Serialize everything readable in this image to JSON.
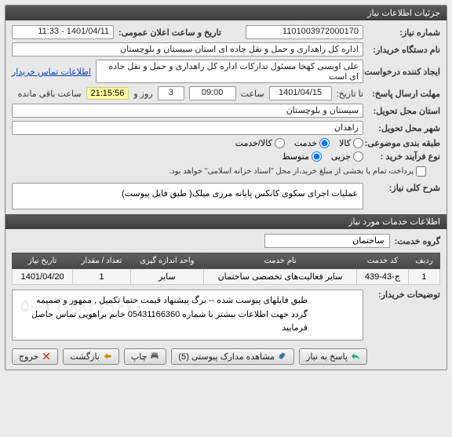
{
  "window": {
    "title": "جزئیات اطلاعات نیاز"
  },
  "header": {
    "need_no_label": "شماره نیاز:",
    "need_no": "1101003972000170",
    "announce_label": "تاریخ و ساعت اعلان عمومی:",
    "announce_value": "1401/04/11 - 11:33",
    "org_label": "نام دستگاه خریدار:",
    "org_value": "اداره کل راهداری و حمل و نقل جاده ای استان سیستان و بلوچستان",
    "requester_label": "ایجاد کننده درخواست:",
    "requester_value": "علی اویسی کهخا مسئول تدارکات اداره کل راهداری و حمل و نقل جاده ای است",
    "contact_link": "اطلاعات تماس خریدار",
    "deadline_label": "مهلت ارسال پاسخ:",
    "to_label": "تا تاریخ:",
    "deadline_date": "1401/04/15",
    "deadline_time_label": "ساعت",
    "deadline_time": "09:00",
    "days_remain": "3",
    "days_label": "روز و",
    "time_remain": "21:15:56",
    "remain_label": "ساعت باقی مانده",
    "province_label": "استان محل تحویل:",
    "province_value": "سیستان و بلوچستان",
    "city_label": "شهر محل تحویل:",
    "city_value": "زاهدان",
    "cat_label": "طبقه بندی موضوعی:",
    "cat_goods": "کالا",
    "cat_service": "خدمت",
    "cat_both": "کالا/خدمت",
    "process_label": "نوع فرآیند خرید :",
    "process_minor": "جزیی",
    "process_medium": "متوسط",
    "partial_label": "پرداخت تمام یا بخشی از مبلغ خرید،از محل \"اسناد خزانه اسلامی\" خواهد بود.",
    "subject_label": "شرح کلی نیاز:",
    "subject_value": "عملیات اجرای سکوی کانکس پایانه مرزی میلک( طبق فایل پیوست)"
  },
  "section2": {
    "title": "اطلاعات خدمات مورد نیاز",
    "group_label": "گروه خدمت:",
    "group_value": "ساختمان"
  },
  "table": {
    "columns": [
      "ردیف",
      "کد خدمت",
      "نام خدمت",
      "واحد اندازه گیری",
      "تعداد / مقدار",
      "تاریخ نیاز"
    ],
    "rows": [
      [
        "1",
        "ج-43-439",
        "سایر فعالیت‌های تخصصی ساختمان",
        "سایر",
        "1",
        "1401/04/20"
      ]
    ]
  },
  "buyer_notes": {
    "label": "توضیحات خریدار:",
    "value": "طبق فایلهای پیوست شده -- برگ پیشنهاد قیمت حتما تکمیل , ممهور و ضمیمه گردد جهت اطلاعات بیشتر با شماره 05431166360 خانم براهویی تماس حاصل فرمایید",
    "watermark": "۵-۰۲۱-۸۸۲۴۹۶۷۰"
  },
  "buttons": {
    "respond": "پاسخ به نیاز",
    "attachments": "مشاهده مدارک پیوستی (5)",
    "print": "چاپ",
    "back": "بازگشت",
    "exit": "خروج"
  },
  "colors": {
    "header_bg": "#4a4a4a",
    "highlight": "#fff9a0",
    "link": "#0a3fb5"
  }
}
